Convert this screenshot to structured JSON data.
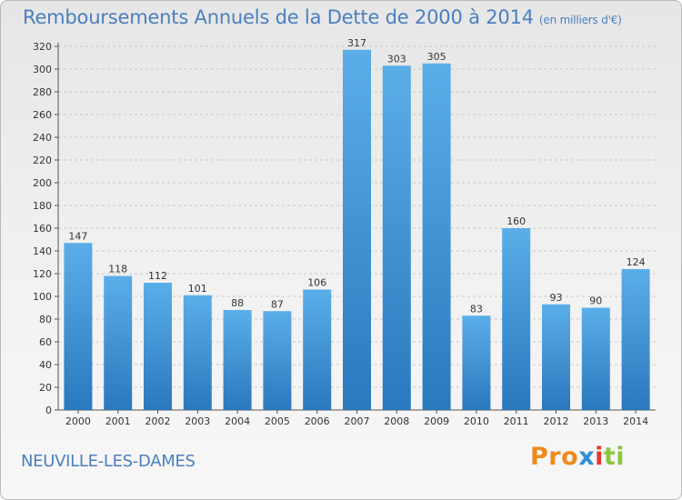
{
  "header": {
    "title": "Remboursements Annuels de la Dette de 2000 à 2014",
    "unit": "(en milliers d'€)"
  },
  "footer": {
    "commune": "NEUVILLE-LES-DAMES",
    "logo": "Proxiti"
  },
  "colors": {
    "bar_top": "#5aaee8",
    "bar_bottom": "#2a78be",
    "text_accent": "#4a7fbf",
    "logo_letters": [
      "#f08a1c",
      "#f08a1c",
      "#f08a1c",
      "#2e8fd8",
      "#e03a2e",
      "#8cc63f",
      "#8cc63f"
    ]
  },
  "chart_data": {
    "type": "bar",
    "title": "Remboursements Annuels de la Dette de 2000 à 2014",
    "xlabel": "",
    "ylabel": "",
    "categories": [
      "2000",
      "2001",
      "2002",
      "2003",
      "2004",
      "2005",
      "2006",
      "2007",
      "2008",
      "2009",
      "2010",
      "2011",
      "2012",
      "2013",
      "2014"
    ],
    "values": [
      147,
      118,
      112,
      101,
      88,
      87,
      106,
      317,
      303,
      305,
      83,
      160,
      93,
      90,
      124
    ],
    "ylim": [
      0,
      320
    ],
    "yticks": [
      0,
      20,
      40,
      60,
      80,
      100,
      120,
      140,
      160,
      180,
      200,
      220,
      240,
      260,
      280,
      300,
      320
    ],
    "grid": true,
    "legend": "none"
  }
}
